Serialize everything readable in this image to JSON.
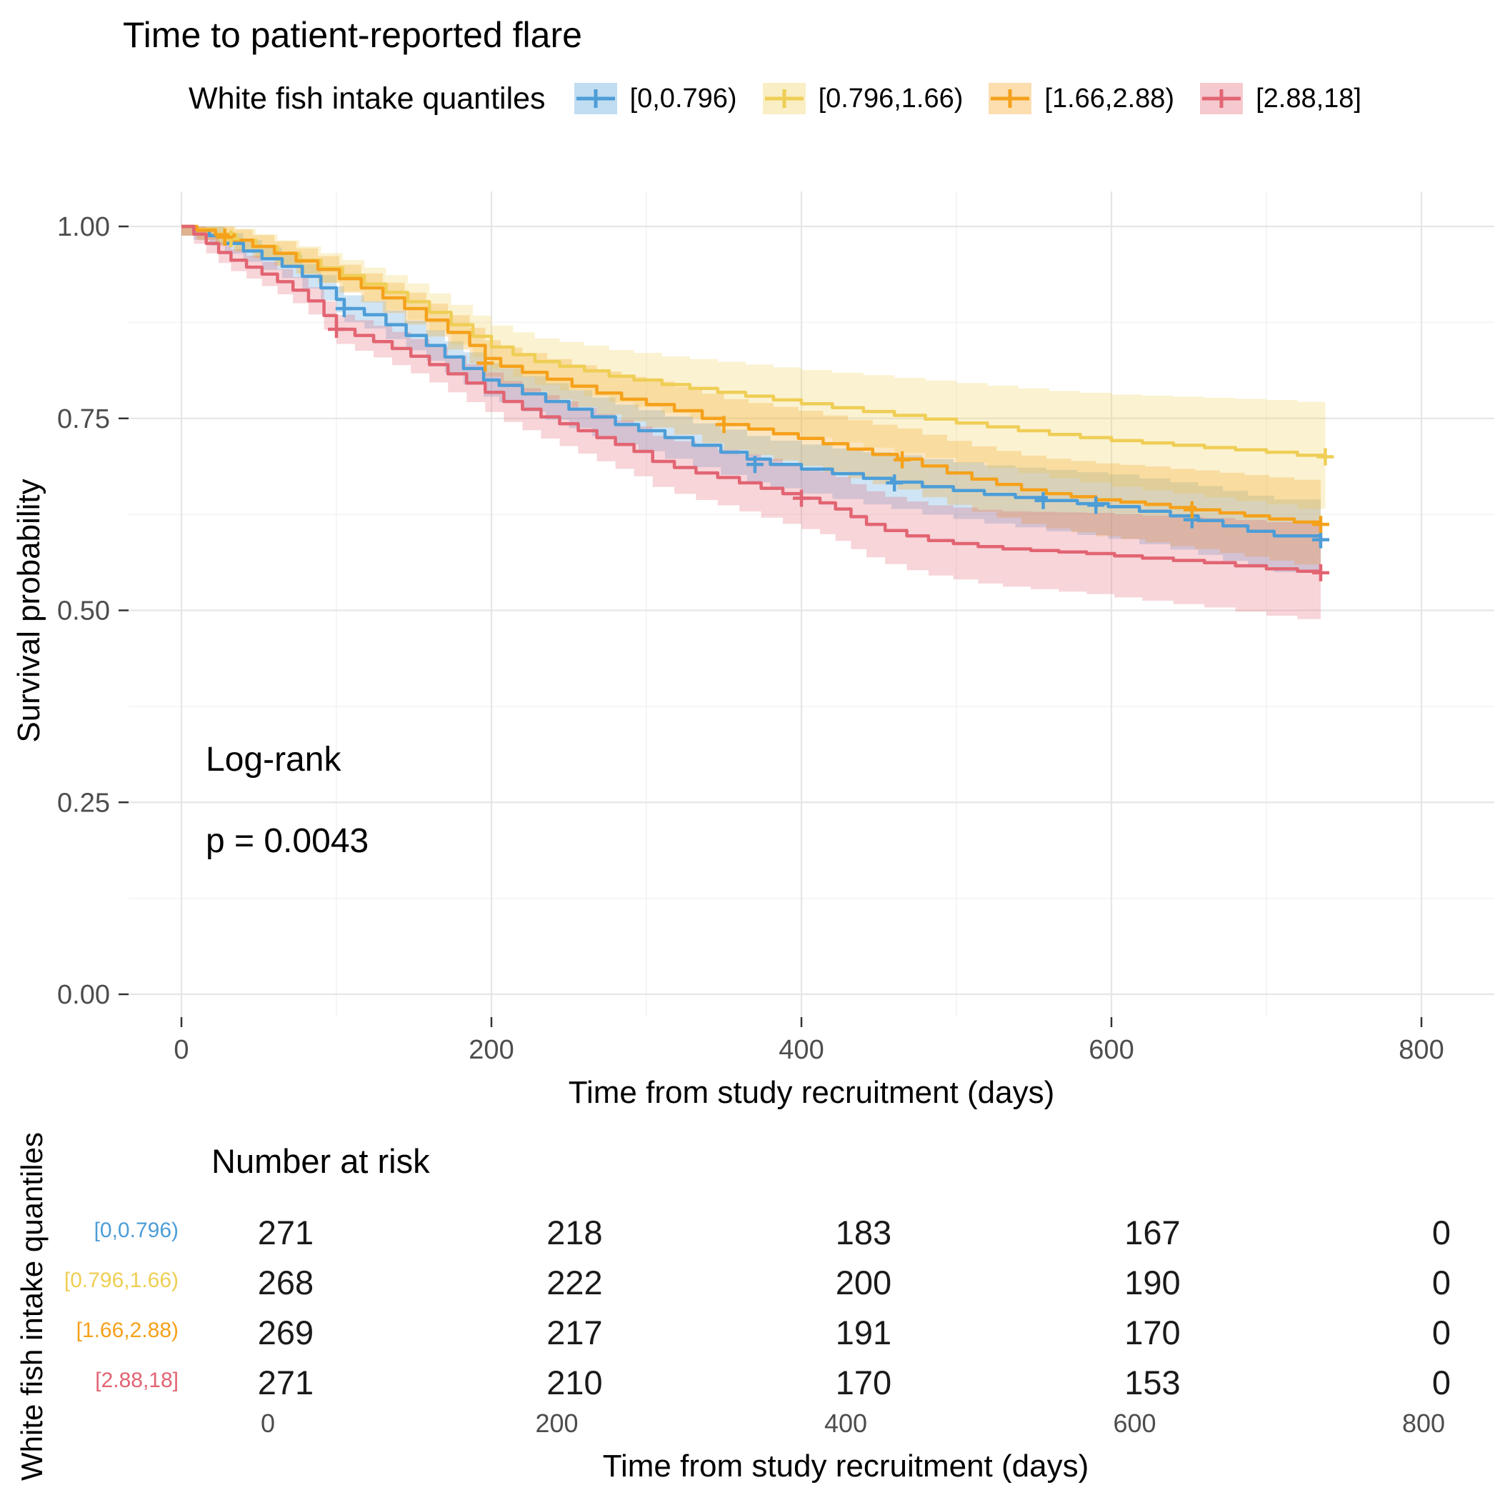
{
  "title": "Time to patient-reported flare",
  "legend": {
    "title": "White fish intake quantiles",
    "items": [
      "[0,0.796)",
      "[0.796,1.66)",
      "[1.66,2.88)",
      "[2.88,18]"
    ]
  },
  "annotation": {
    "test": "Log-rank",
    "p_value": "p = 0.0043"
  },
  "axes": {
    "x_label": "Time from study recruitment (days)",
    "y_label": "Survival probability",
    "x_ticks": [
      0,
      200,
      400,
      600,
      800
    ],
    "y_ticks": [
      0,
      0.25,
      0.5,
      0.75,
      1
    ]
  },
  "risk_table": {
    "heading": "Number at risk",
    "side_label": "White fish intake quantiles",
    "x_label": "Time from study recruitment (days)",
    "x_ticks": [
      0,
      200,
      400,
      600,
      800
    ],
    "rows": [
      {
        "label": "[0,0.796)",
        "values": [
          271,
          218,
          183,
          167,
          0
        ]
      },
      {
        "label": "[0.796,1.66)",
        "values": [
          268,
          222,
          200,
          190,
          0
        ]
      },
      {
        "label": "[1.66,2.88)",
        "values": [
          269,
          217,
          191,
          170,
          0
        ]
      },
      {
        "label": "[2.88,18]",
        "values": [
          271,
          210,
          170,
          153,
          0
        ]
      }
    ]
  },
  "chart_data": {
    "type": "line",
    "subtype": "kaplan-meier",
    "title": "Time to patient-reported flare",
    "xlabel": "Time from study recruitment (days)",
    "ylabel": "Survival probability",
    "xlim": [
      0,
      846
    ],
    "ylim": [
      0,
      1
    ],
    "x_ticks": [
      0,
      200,
      400,
      600,
      800
    ],
    "y_ticks": [
      0,
      0.25,
      0.5,
      0.75,
      1
    ],
    "grid": true,
    "legend_position": "top",
    "log_rank_p": 0.0043,
    "series": [
      {
        "name": "[0,0.796)",
        "color": "#4D9DD7",
        "ci": [
          0.012,
          5e-05
        ],
        "points": [
          [
            0,
            1.0
          ],
          [
            8,
            0.995
          ],
          [
            18,
            0.988
          ],
          [
            28,
            0.978
          ],
          [
            40,
            0.968
          ],
          [
            52,
            0.958
          ],
          [
            65,
            0.948
          ],
          [
            78,
            0.935
          ],
          [
            90,
            0.92
          ],
          [
            100,
            0.905
          ],
          [
            105,
            0.893
          ],
          [
            118,
            0.885
          ],
          [
            132,
            0.872
          ],
          [
            145,
            0.858
          ],
          [
            158,
            0.845
          ],
          [
            170,
            0.83
          ],
          [
            182,
            0.815
          ],
          [
            195,
            0.8
          ],
          [
            205,
            0.793
          ],
          [
            220,
            0.782
          ],
          [
            235,
            0.772
          ],
          [
            250,
            0.762
          ],
          [
            265,
            0.752
          ],
          [
            280,
            0.742
          ],
          [
            295,
            0.734
          ],
          [
            312,
            0.725
          ],
          [
            330,
            0.715
          ],
          [
            348,
            0.706
          ],
          [
            365,
            0.697
          ],
          [
            380,
            0.69
          ],
          [
            400,
            0.684
          ],
          [
            420,
            0.678
          ],
          [
            440,
            0.672
          ],
          [
            458,
            0.667
          ],
          [
            478,
            0.661
          ],
          [
            498,
            0.656
          ],
          [
            518,
            0.651
          ],
          [
            538,
            0.647
          ],
          [
            558,
            0.643
          ],
          [
            578,
            0.639
          ],
          [
            598,
            0.635
          ],
          [
            618,
            0.629
          ],
          [
            638,
            0.623
          ],
          [
            656,
            0.617
          ],
          [
            672,
            0.61
          ],
          [
            688,
            0.603
          ],
          [
            705,
            0.597
          ],
          [
            735,
            0.592
          ]
        ],
        "censors": [
          [
            105,
            0.893
          ],
          [
            370,
            0.69
          ],
          [
            460,
            0.666
          ],
          [
            556,
            0.643
          ],
          [
            590,
            0.637
          ],
          [
            652,
            0.618
          ],
          [
            735,
            0.592
          ]
        ]
      },
      {
        "name": "[0.796,1.66)",
        "color": "#EFCE55",
        "ci": [
          0.012,
          8e-05
        ],
        "points": [
          [
            0,
            1.0
          ],
          [
            10,
            0.996
          ],
          [
            22,
            0.99
          ],
          [
            35,
            0.982
          ],
          [
            48,
            0.974
          ],
          [
            62,
            0.965
          ],
          [
            76,
            0.956
          ],
          [
            90,
            0.946
          ],
          [
            104,
            0.936
          ],
          [
            118,
            0.925
          ],
          [
            132,
            0.914
          ],
          [
            146,
            0.902
          ],
          [
            160,
            0.888
          ],
          [
            174,
            0.872
          ],
          [
            188,
            0.857
          ],
          [
            200,
            0.843
          ],
          [
            214,
            0.833
          ],
          [
            228,
            0.824
          ],
          [
            244,
            0.818
          ],
          [
            260,
            0.812
          ],
          [
            276,
            0.805
          ],
          [
            292,
            0.8
          ],
          [
            310,
            0.794
          ],
          [
            328,
            0.789
          ],
          [
            346,
            0.784
          ],
          [
            364,
            0.779
          ],
          [
            382,
            0.774
          ],
          [
            400,
            0.769
          ],
          [
            420,
            0.764
          ],
          [
            440,
            0.759
          ],
          [
            460,
            0.754
          ],
          [
            480,
            0.749
          ],
          [
            500,
            0.744
          ],
          [
            520,
            0.739
          ],
          [
            540,
            0.734
          ],
          [
            560,
            0.729
          ],
          [
            580,
            0.725
          ],
          [
            600,
            0.721
          ],
          [
            620,
            0.718
          ],
          [
            640,
            0.715
          ],
          [
            660,
            0.712
          ],
          [
            680,
            0.709
          ],
          [
            700,
            0.706
          ],
          [
            720,
            0.702
          ],
          [
            738,
            0.7
          ]
        ],
        "censors": [
          [
            32,
            0.984
          ],
          [
            738,
            0.7
          ]
        ]
      },
      {
        "name": "[1.66,2.88)",
        "color": "#F5A11B",
        "ci": [
          0.012,
          6e-05
        ],
        "points": [
          [
            0,
            1.0
          ],
          [
            10,
            0.995
          ],
          [
            22,
            0.989
          ],
          [
            34,
            0.982
          ],
          [
            46,
            0.974
          ],
          [
            60,
            0.965
          ],
          [
            74,
            0.955
          ],
          [
            88,
            0.944
          ],
          [
            102,
            0.932
          ],
          [
            116,
            0.92
          ],
          [
            130,
            0.907
          ],
          [
            144,
            0.893
          ],
          [
            158,
            0.878
          ],
          [
            172,
            0.862
          ],
          [
            186,
            0.845
          ],
          [
            196,
            0.828
          ],
          [
            206,
            0.818
          ],
          [
            220,
            0.81
          ],
          [
            236,
            0.801
          ],
          [
            252,
            0.792
          ],
          [
            268,
            0.783
          ],
          [
            284,
            0.775
          ],
          [
            300,
            0.768
          ],
          [
            318,
            0.76
          ],
          [
            336,
            0.75
          ],
          [
            350,
            0.742
          ],
          [
            366,
            0.736
          ],
          [
            382,
            0.73
          ],
          [
            398,
            0.724
          ],
          [
            414,
            0.717
          ],
          [
            430,
            0.71
          ],
          [
            446,
            0.703
          ],
          [
            462,
            0.697
          ],
          [
            478,
            0.688
          ],
          [
            494,
            0.679
          ],
          [
            510,
            0.671
          ],
          [
            526,
            0.664
          ],
          [
            542,
            0.657
          ],
          [
            558,
            0.652
          ],
          [
            574,
            0.648
          ],
          [
            590,
            0.644
          ],
          [
            606,
            0.641
          ],
          [
            622,
            0.638
          ],
          [
            638,
            0.634
          ],
          [
            654,
            0.631
          ],
          [
            670,
            0.627
          ],
          [
            686,
            0.623
          ],
          [
            702,
            0.619
          ],
          [
            718,
            0.615
          ],
          [
            735,
            0.612
          ]
        ],
        "censors": [
          [
            28,
            0.986
          ],
          [
            196,
            0.822
          ],
          [
            350,
            0.742
          ],
          [
            465,
            0.696
          ],
          [
            652,
            0.631
          ],
          [
            735,
            0.612
          ]
        ]
      },
      {
        "name": "[2.88,18]",
        "color": "#E26472",
        "ci": [
          0.012,
          7e-05
        ],
        "points": [
          [
            0,
            1.0
          ],
          [
            8,
            0.99
          ],
          [
            16,
            0.978
          ],
          [
            24,
            0.966
          ],
          [
            32,
            0.956
          ],
          [
            42,
            0.947
          ],
          [
            52,
            0.938
          ],
          [
            62,
            0.928
          ],
          [
            72,
            0.917
          ],
          [
            82,
            0.903
          ],
          [
            92,
            0.884
          ],
          [
            100,
            0.866
          ],
          [
            112,
            0.858
          ],
          [
            124,
            0.85
          ],
          [
            136,
            0.841
          ],
          [
            148,
            0.831
          ],
          [
            160,
            0.82
          ],
          [
            172,
            0.808
          ],
          [
            184,
            0.796
          ],
          [
            196,
            0.784
          ],
          [
            208,
            0.772
          ],
          [
            220,
            0.762
          ],
          [
            232,
            0.752
          ],
          [
            244,
            0.743
          ],
          [
            256,
            0.734
          ],
          [
            268,
            0.725
          ],
          [
            280,
            0.716
          ],
          [
            292,
            0.707
          ],
          [
            304,
            0.694
          ],
          [
            318,
            0.686
          ],
          [
            332,
            0.679
          ],
          [
            346,
            0.673
          ],
          [
            360,
            0.666
          ],
          [
            374,
            0.659
          ],
          [
            388,
            0.652
          ],
          [
            400,
            0.646
          ],
          [
            412,
            0.64
          ],
          [
            422,
            0.632
          ],
          [
            432,
            0.622
          ],
          [
            442,
            0.612
          ],
          [
            454,
            0.604
          ],
          [
            468,
            0.597
          ],
          [
            482,
            0.591
          ],
          [
            498,
            0.587
          ],
          [
            514,
            0.583
          ],
          [
            530,
            0.58
          ],
          [
            548,
            0.578
          ],
          [
            566,
            0.576
          ],
          [
            584,
            0.574
          ],
          [
            602,
            0.571
          ],
          [
            620,
            0.568
          ],
          [
            640,
            0.565
          ],
          [
            660,
            0.562
          ],
          [
            680,
            0.558
          ],
          [
            700,
            0.554
          ],
          [
            720,
            0.551
          ],
          [
            735,
            0.549
          ]
        ],
        "censors": [
          [
            100,
            0.866
          ],
          [
            400,
            0.646
          ],
          [
            735,
            0.549
          ]
        ]
      }
    ]
  }
}
